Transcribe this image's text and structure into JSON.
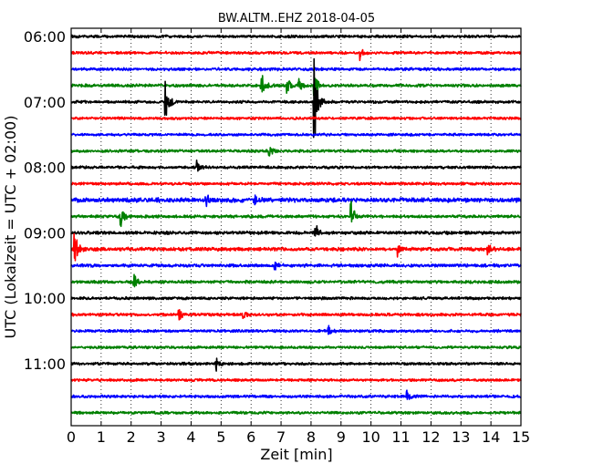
{
  "chart_data": {
    "type": "line",
    "title": "BW.ALTM..EHZ 2018-04-05",
    "xlabel": "Zeit  [min]",
    "ylabel": "UTC (Lokalzeit = UTC + 02:00)",
    "xlim": [
      0,
      15
    ],
    "xticks": [
      "0",
      "1",
      "2",
      "3",
      "4",
      "5",
      "6",
      "7",
      "8",
      "9",
      "10",
      "11",
      "12",
      "13",
      "14",
      "15"
    ],
    "yticks": [
      {
        "label": "06:00",
        "row": 0
      },
      {
        "label": "07:00",
        "row": 4
      },
      {
        "label": "08:00",
        "row": 8
      },
      {
        "label": "09:00",
        "row": 12
      },
      {
        "label": "10:00",
        "row": 16
      },
      {
        "label": "11:00",
        "row": 20
      }
    ],
    "row_minutes": 15,
    "grid": "vertical-dotted",
    "colors": [
      "#000000",
      "#ff0000",
      "#0000ff",
      "#008000"
    ],
    "traces": [
      {
        "start": "06:00",
        "color_index": 0,
        "amp": 0.8
      },
      {
        "start": "06:15",
        "color_index": 1,
        "amp": 0.8,
        "events": [
          {
            "t": 9.65,
            "a": 5
          }
        ]
      },
      {
        "start": "06:30",
        "color_index": 2,
        "amp": 0.85
      },
      {
        "start": "06:45",
        "color_index": 3,
        "amp": 0.85,
        "events": [
          {
            "t": 6.35,
            "a": 9
          },
          {
            "t": 7.2,
            "a": 4
          },
          {
            "t": 7.6,
            "a": 4
          },
          {
            "t": 8.1,
            "a": 12
          }
        ]
      },
      {
        "start": "07:00",
        "color_index": 0,
        "amp": 0.8,
        "events": [
          {
            "t": 3.15,
            "a": 14
          },
          {
            "t": 8.1,
            "a": 40
          }
        ]
      },
      {
        "start": "07:15",
        "color_index": 1,
        "amp": 0.75
      },
      {
        "start": "07:30",
        "color_index": 2,
        "amp": 0.75
      },
      {
        "start": "07:45",
        "color_index": 3,
        "amp": 0.8,
        "events": [
          {
            "t": 6.6,
            "a": 4
          }
        ]
      },
      {
        "start": "08:00",
        "color_index": 0,
        "amp": 0.8,
        "events": [
          {
            "t": 4.2,
            "a": 4
          }
        ]
      },
      {
        "start": "08:15",
        "color_index": 1,
        "amp": 0.8
      },
      {
        "start": "08:30",
        "color_index": 2,
        "amp": 1.3,
        "events": [
          {
            "t": 4.5,
            "a": 3
          },
          {
            "t": 6.1,
            "a": 3
          }
        ]
      },
      {
        "start": "08:45",
        "color_index": 3,
        "amp": 0.85,
        "events": [
          {
            "t": 1.65,
            "a": 9
          },
          {
            "t": 9.35,
            "a": 10
          }
        ]
      },
      {
        "start": "09:00",
        "color_index": 0,
        "amp": 0.95,
        "events": [
          {
            "t": 8.15,
            "a": 6
          }
        ]
      },
      {
        "start": "09:15",
        "color_index": 1,
        "amp": 1.05,
        "events": [
          {
            "t": 0.12,
            "a": 14
          },
          {
            "t": 10.9,
            "a": 4
          },
          {
            "t": 13.9,
            "a": 3
          }
        ]
      },
      {
        "start": "09:30",
        "color_index": 2,
        "amp": 0.9,
        "events": [
          {
            "t": 6.8,
            "a": 3
          }
        ]
      },
      {
        "start": "09:45",
        "color_index": 3,
        "amp": 0.85,
        "events": [
          {
            "t": 2.1,
            "a": 4
          }
        ]
      },
      {
        "start": "10:00",
        "color_index": 0,
        "amp": 0.8
      },
      {
        "start": "10:15",
        "color_index": 1,
        "amp": 0.85,
        "events": [
          {
            "t": 3.6,
            "a": 3
          },
          {
            "t": 5.7,
            "a": 3
          }
        ]
      },
      {
        "start": "10:30",
        "color_index": 2,
        "amp": 0.8,
        "events": [
          {
            "t": 8.6,
            "a": 3
          }
        ]
      },
      {
        "start": "10:45",
        "color_index": 3,
        "amp": 0.75
      },
      {
        "start": "11:00",
        "color_index": 0,
        "amp": 0.8,
        "events": [
          {
            "t": 4.85,
            "a": 4
          }
        ]
      },
      {
        "start": "11:15",
        "color_index": 1,
        "amp": 0.75
      },
      {
        "start": "11:30",
        "color_index": 2,
        "amp": 0.8,
        "events": [
          {
            "t": 11.2,
            "a": 3
          }
        ]
      },
      {
        "start": "11:45",
        "color_index": 3,
        "amp": 0.8
      }
    ]
  }
}
